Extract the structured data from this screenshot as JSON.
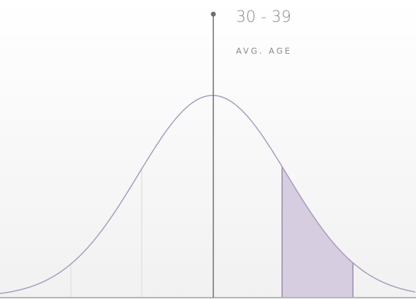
{
  "label": {
    "value": "30 - 39",
    "caption": "AVG. AGE"
  }
}
